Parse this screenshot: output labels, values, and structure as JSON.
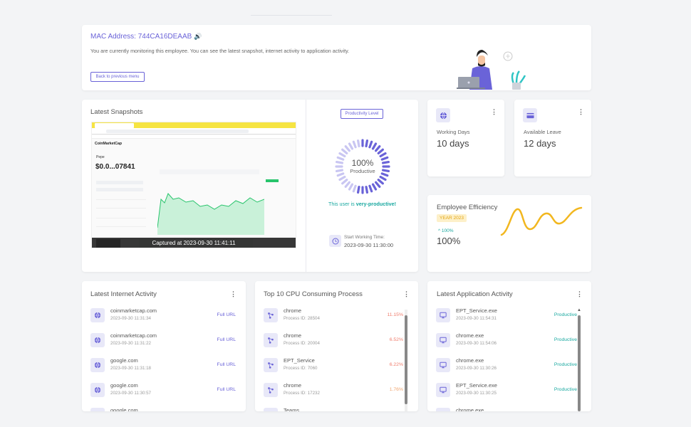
{
  "header": {
    "mac_label": "MAC Address: 744CA16DEAAB",
    "description": "You are currently monitoring this employee. You can see the latest snapshot, internet activity to application activity.",
    "back_button": "Back to previous menu"
  },
  "snapshots": {
    "title": "Latest Snapshots",
    "caption": "Captured at 2023-09-30 11:41:11",
    "mini_browser": {
      "brand": "CoinMarketCap",
      "price": "$0.0...07841",
      "coin": "Pepe"
    }
  },
  "productivity": {
    "badge": "Productivity Level",
    "percent": "100%",
    "label": "Productive",
    "status_prefix": "This user is ",
    "status_value": "very-productive!",
    "start_label": "Start Working Time:",
    "start_value": "2023-09-30 11:30:00",
    "level": 1.0
  },
  "working_days": {
    "label": "Working Days",
    "value": "10 days"
  },
  "available_leave": {
    "label": "Available Leave",
    "value": "12 days"
  },
  "efficiency": {
    "title": "Employee Efficiency",
    "badge": "YEAR 2023",
    "change": "^ 100%",
    "value": "100%"
  },
  "internet": {
    "title": "Latest Internet Activity",
    "link_label": "Full URL",
    "items": [
      {
        "site": "coinmarketcap.com",
        "time": "2023-09-30 11:31:34"
      },
      {
        "site": "coinmarketcap.com",
        "time": "2023-09-30 11:31:22"
      },
      {
        "site": "google.com",
        "time": "2023-09-30 11:31:18"
      },
      {
        "site": "google.com",
        "time": "2023-09-30 11:30:57"
      },
      {
        "site": "google.com",
        "time": ""
      }
    ]
  },
  "cpu": {
    "title": "Top 10 CPU Consuming Process",
    "items": [
      {
        "name": "chrome",
        "pid": "Process ID: 28504",
        "pct": "11.15%",
        "color": "#f07e6e"
      },
      {
        "name": "chrome",
        "pid": "Process ID: 20004",
        "pct": "6.52%",
        "color": "#f07e6e"
      },
      {
        "name": "EPT_Service",
        "pid": "Process ID: 7060",
        "pct": "6.22%",
        "color": "#f07e6e"
      },
      {
        "name": "chrome",
        "pid": "Process ID: 17232",
        "pct": "1.76%",
        "color": "#f0a46e"
      },
      {
        "name": "Teams",
        "pid": "",
        "pct": "",
        "color": "#f0a46e"
      }
    ]
  },
  "apps": {
    "title": "Latest Application Activity",
    "items": [
      {
        "name": "EPT_Service.exe",
        "time": "2023-09-30 11:54:31",
        "status": "Productive"
      },
      {
        "name": "chrome.exe",
        "time": "2023-09-30 11:54:06",
        "status": "Productive"
      },
      {
        "name": "chrome.exe",
        "time": "2023-09-30 11:30:26",
        "status": "Productive"
      },
      {
        "name": "EPT_Service.exe",
        "time": "2023-09-30 11:30:25",
        "status": "Productive"
      },
      {
        "name": "chrome.exe",
        "time": "",
        "status": ""
      }
    ]
  },
  "colors": {
    "accent": "#6a63d8",
    "productive": "#19a8a0",
    "efficiency_line": "#f2b71f",
    "gauge_active": "#6a63d8",
    "gauge_light": "#c9c6f2"
  },
  "icons": {
    "header_mac": "speaker-icon",
    "working_days": "globe-icon",
    "available_leave": "card-icon",
    "internet_row": "globe-icon",
    "cpu_row": "process-icon",
    "app_row": "monitor-icon",
    "start_time": "clock-icon"
  }
}
